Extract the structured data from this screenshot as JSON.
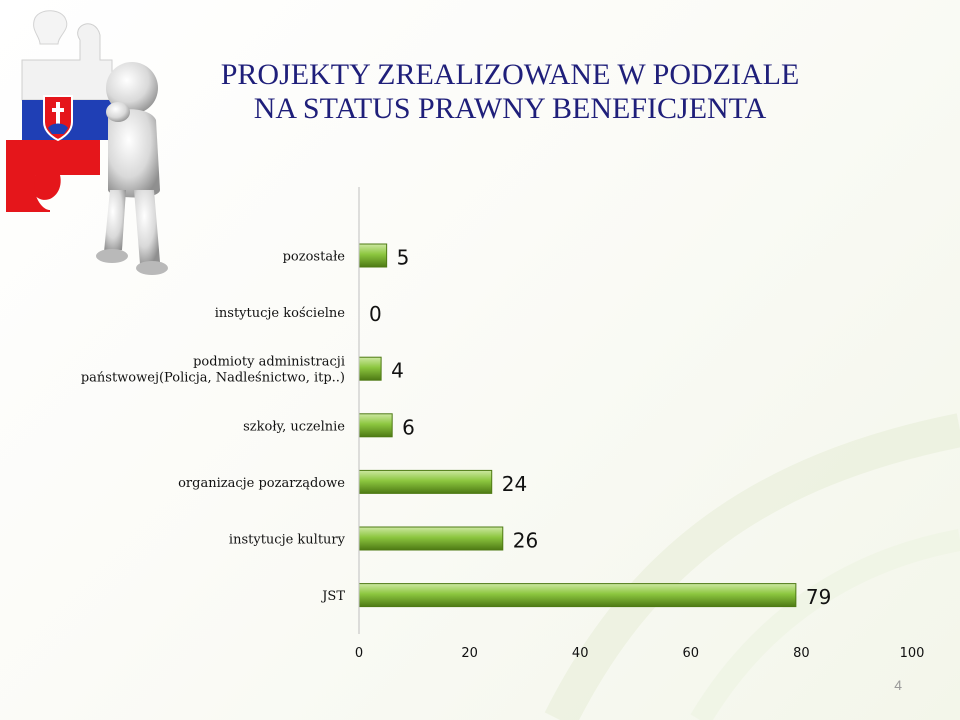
{
  "slide": {
    "title_line1": "PROJEKTY ZREALIZOWANE W PODZIALE",
    "title_line2": "NA STATUS PRAWNY BENEFICJENTA",
    "page_number": "4"
  },
  "chart_data": {
    "type": "bar",
    "orientation": "horizontal",
    "categories": [
      "pozostałe",
      "instytucje kościelne",
      "podmioty administracji państwowej(Policja, Nadleśnictwo, itp..)",
      "szkoły, uczelnie",
      "organizacje pozarządowe",
      "instytucje kultury",
      "JST"
    ],
    "category_label_lines": [
      [
        "pozostałe"
      ],
      [
        "instytucje kościelne"
      ],
      [
        "podmioty administracji",
        "państwowej(Policja, Nadleśnictwo, itp..)"
      ],
      [
        "szkoły, uczelnie"
      ],
      [
        "organizacje pozarządowe"
      ],
      [
        "instytucje kultury"
      ],
      [
        "JST"
      ]
    ],
    "values": [
      5,
      0,
      4,
      6,
      24,
      26,
      79
    ],
    "data_labels": [
      "5",
      "0",
      "4",
      "6",
      "24",
      "26",
      "79"
    ],
    "xlim": [
      0,
      100
    ],
    "x_ticks": [
      0,
      20,
      40,
      60,
      80,
      100
    ],
    "grid": false,
    "bar_color": "#8cc63f",
    "bar_color_dark": "#4e7a14",
    "bar_color_light": "#cde8a2"
  },
  "colors": {
    "title": "#1f1f7a",
    "flag_red": "#e5161b",
    "flag_blue": "#1f3fb5"
  }
}
